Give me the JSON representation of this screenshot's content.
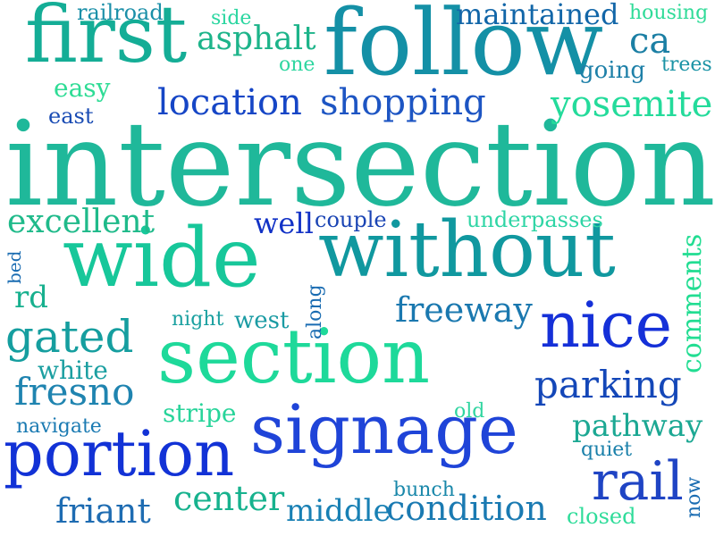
{
  "words": [
    {
      "text": "intersection",
      "color": "#1fb89a"
    },
    {
      "text": "follow",
      "color": "#1490a6"
    },
    {
      "text": "first",
      "color": "#14ad96"
    },
    {
      "text": "wide",
      "color": "#17c79a"
    },
    {
      "text": "without",
      "color": "#10989f"
    },
    {
      "text": "section",
      "color": "#1ed99a"
    },
    {
      "text": "signage",
      "color": "#1f44d8"
    },
    {
      "text": "portion",
      "color": "#1232d6"
    },
    {
      "text": "nice",
      "color": "#1530d8"
    },
    {
      "text": "location",
      "color": "#1646c6"
    },
    {
      "text": "shopping",
      "color": "#1d55c3"
    },
    {
      "text": "gated",
      "color": "#159e9f"
    },
    {
      "text": "rail",
      "color": "#1f44c4"
    },
    {
      "text": "parking",
      "color": "#1447b8"
    },
    {
      "text": "freeway",
      "color": "#1a78af"
    },
    {
      "text": "fresno",
      "color": "#1f84b0"
    },
    {
      "text": "asphalt",
      "color": "#1db48a"
    },
    {
      "text": "maintained",
      "color": "#1266a8"
    },
    {
      "text": "yosemite",
      "color": "#24db9b"
    },
    {
      "text": "excellent",
      "color": "#1fba8a"
    },
    {
      "text": "center",
      "color": "#17b28e"
    },
    {
      "text": "friant",
      "color": "#1e6cb2"
    },
    {
      "text": "middle",
      "color": "#1880b4"
    },
    {
      "text": "condition",
      "color": "#1a7ab2"
    },
    {
      "text": "pathway",
      "color": "#1ca893"
    },
    {
      "text": "comments",
      "color": "#22dd92"
    },
    {
      "text": "well",
      "color": "#1232c6"
    },
    {
      "text": "ca",
      "color": "#1b7fa4"
    },
    {
      "text": "rd",
      "color": "#17b08e"
    },
    {
      "text": "white",
      "color": "#1b9fa1"
    },
    {
      "text": "stripe",
      "color": "#28d49a"
    },
    {
      "text": "easy",
      "color": "#2edc95"
    },
    {
      "text": "railroad",
      "color": "#1a8fa8"
    },
    {
      "text": "housing",
      "color": "#2fdb98"
    },
    {
      "text": "going",
      "color": "#1e80a8"
    },
    {
      "text": "trees",
      "color": "#1a93a5"
    },
    {
      "text": "side",
      "color": "#2ad6a0"
    },
    {
      "text": "one",
      "color": "#2fd6a0"
    },
    {
      "text": "east",
      "color": "#1a4cb4"
    },
    {
      "text": "couple",
      "color": "#1a44b4"
    },
    {
      "text": "underpasses",
      "color": "#2fd5a5"
    },
    {
      "text": "night",
      "color": "#1aa0a0"
    },
    {
      "text": "west",
      "color": "#1a9ba3"
    },
    {
      "text": "along",
      "color": "#1a6cb2"
    },
    {
      "text": "navigate",
      "color": "#1a7ab2"
    },
    {
      "text": "old",
      "color": "#2fd5a0"
    },
    {
      "text": "quiet",
      "color": "#1a80aa"
    },
    {
      "text": "bunch",
      "color": "#1a88aa"
    },
    {
      "text": "closed",
      "color": "#2fdc9a"
    },
    {
      "text": "now",
      "color": "#1a6cb2"
    },
    {
      "text": "bed",
      "color": "#1a6cb2"
    }
  ]
}
